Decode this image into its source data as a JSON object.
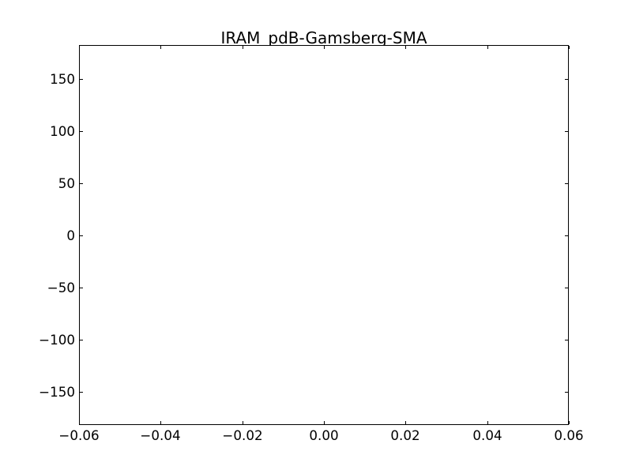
{
  "figure": {
    "background_color": "#ffffff",
    "frame_color": "#000000",
    "text_color": "#000000"
  },
  "chart_data": {
    "type": "scatter",
    "title": "IRAM_pdB-Gamsberg-SMA",
    "xlabel": "",
    "ylabel": "",
    "xlim": [
      -0.06,
      0.06
    ],
    "ylim": [
      -182,
      183
    ],
    "xticks": [
      -0.06,
      -0.04,
      -0.02,
      0.0,
      0.02,
      0.04,
      0.06
    ],
    "xtick_labels": [
      "−0.06",
      "−0.04",
      "−0.02",
      "0.00",
      "0.02",
      "0.04",
      "0.06"
    ],
    "yticks": [
      150,
      100,
      50,
      0,
      -50,
      -100,
      -150
    ],
    "ytick_labels": [
      "150",
      "100",
      "50",
      "0",
      "−50",
      "−100",
      "−150"
    ],
    "series": [],
    "grid": false,
    "legend": null,
    "tick_direction": "in",
    "ticks_on_all_sides": true
  }
}
